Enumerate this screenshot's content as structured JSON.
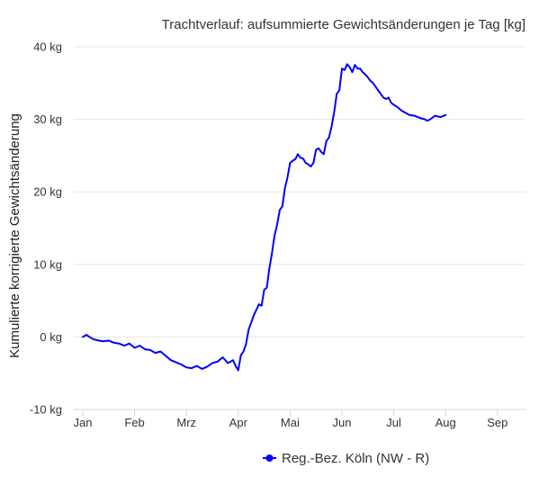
{
  "chart_data": {
    "type": "line",
    "title": "Trachtverlauf: aufsummierte Gewichtsänderungen je Tag [kg]",
    "xlabel": "",
    "ylabel": "Kumulierte korrigierte Gewichtsänderung",
    "x_ticks": [
      "Jan",
      "Feb",
      "Mrz",
      "Apr",
      "Mai",
      "Jun",
      "Jul",
      "Aug",
      "Sep"
    ],
    "y_ticks": [
      "-10 kg",
      "0 kg",
      "10 kg",
      "20 kg",
      "30 kg",
      "40 kg"
    ],
    "ylim": [
      -10,
      40
    ],
    "xlim_month": [
      0,
      8.15
    ],
    "grid": true,
    "legend_position": "bottom-center",
    "series": [
      {
        "name": "Reg.-Bez. Köln (NW - R)",
        "color": "#0000ff",
        "x_month": [
          0.0,
          0.07,
          0.13,
          0.2,
          0.3,
          0.4,
          0.5,
          0.6,
          0.7,
          0.8,
          0.9,
          1.0,
          1.1,
          1.2,
          1.3,
          1.4,
          1.5,
          1.6,
          1.7,
          1.8,
          1.9,
          2.0,
          2.1,
          2.2,
          2.3,
          2.4,
          2.5,
          2.6,
          2.7,
          2.8,
          2.9,
          2.95,
          3.0,
          3.05,
          3.1,
          3.15,
          3.2,
          3.25,
          3.3,
          3.4,
          3.45,
          3.5,
          3.55,
          3.6,
          3.65,
          3.7,
          3.75,
          3.8,
          3.85,
          3.9,
          3.95,
          4.0,
          4.05,
          4.1,
          4.15,
          4.2,
          4.25,
          4.3,
          4.35,
          4.4,
          4.45,
          4.5,
          4.55,
          4.6,
          4.65,
          4.7,
          4.75,
          4.8,
          4.85,
          4.9,
          4.95,
          5.0,
          5.05,
          5.1,
          5.15,
          5.2,
          5.25,
          5.3,
          5.35,
          5.4,
          5.45,
          5.5,
          5.55,
          5.6,
          5.65,
          5.7,
          5.75,
          5.8,
          5.85,
          5.9,
          5.95,
          6.0,
          6.05,
          6.1,
          6.15,
          6.2,
          6.3,
          6.4,
          6.5,
          6.6,
          6.65,
          6.7,
          6.8,
          6.9,
          7.0
        ],
        "y": [
          0.0,
          0.3,
          0.0,
          -0.3,
          -0.5,
          -0.6,
          -0.5,
          -0.8,
          -0.9,
          -1.2,
          -0.9,
          -1.5,
          -1.2,
          -1.7,
          -1.8,
          -2.2,
          -2.0,
          -2.6,
          -3.2,
          -3.5,
          -3.8,
          -4.2,
          -4.3,
          -4.0,
          -4.4,
          -4.1,
          -3.6,
          -3.4,
          -2.8,
          -3.6,
          -3.2,
          -4.0,
          -4.6,
          -2.5,
          -2.0,
          -1.0,
          1.0,
          2.0,
          3.0,
          4.5,
          4.3,
          6.5,
          6.8,
          9.5,
          11.5,
          14.0,
          15.5,
          17.5,
          18.0,
          20.5,
          22.0,
          24.0,
          24.3,
          24.5,
          25.2,
          24.7,
          24.6,
          24.0,
          23.8,
          23.5,
          24.0,
          25.8,
          26.0,
          25.5,
          25.2,
          27.0,
          27.5,
          29.0,
          31.0,
          33.5,
          34.0,
          37.0,
          36.8,
          37.6,
          37.2,
          36.5,
          37.5,
          37.0,
          37.0,
          36.5,
          36.2,
          35.8,
          35.3,
          35.0,
          34.5,
          34.0,
          33.5,
          33.0,
          32.8,
          33.0,
          32.3,
          32.0,
          31.8,
          31.5,
          31.2,
          31.0,
          30.6,
          30.5,
          30.2,
          30.0,
          29.8,
          30.0,
          30.5,
          30.3,
          30.6
        ]
      }
    ]
  }
}
